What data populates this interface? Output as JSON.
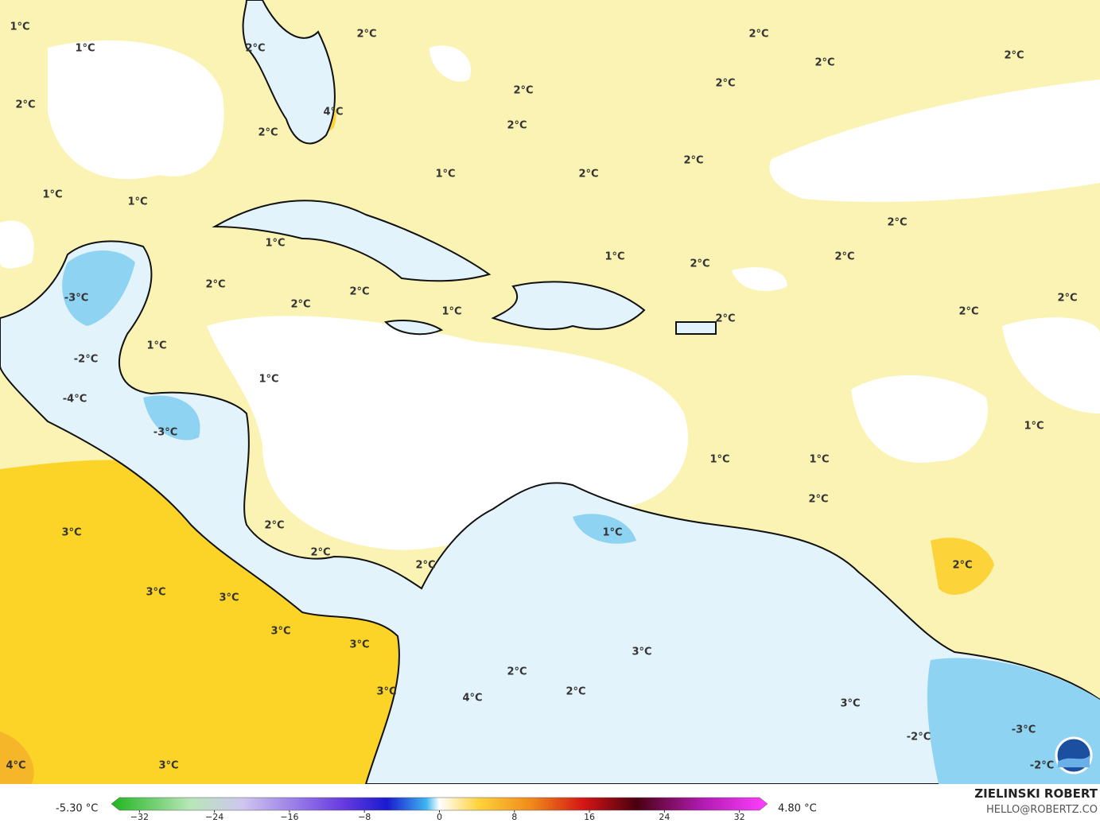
{
  "map": {
    "labels": [
      "1°C",
      "1°C",
      "2°C",
      "2°C",
      "2°C",
      "2°C",
      "2°C",
      "2°C",
      "4°C",
      "2°C",
      "2°C",
      "2°C",
      "2°C",
      "1°C",
      "2°C",
      "2°C",
      "1°C",
      "1°C",
      "2°C",
      "1°C",
      "1°C",
      "2°C",
      "2°C",
      "2°C",
      "2°C",
      "-3°C",
      "2°C",
      "1°C",
      "2°C",
      "2°C",
      "2°C",
      "1°C",
      "-2°C",
      "1°C",
      "-4°C",
      "-3°C",
      "1°C",
      "1°C",
      "1°C",
      "2°C",
      "2°C",
      "3°C",
      "1°C",
      "2°C",
      "2°C",
      "2°C",
      "3°C",
      "3°C",
      "3°C",
      "3°C",
      "3°C",
      "2°C",
      "3°C",
      "2°C",
      "4°C",
      "3°C",
      "-2°C",
      "-3°C",
      "4°C",
      "3°C",
      "-2°C"
    ],
    "colorbar": {
      "min_label": "-5.30 °C",
      "max_label": "4.80 °C",
      "xlim": [
        -35,
        35
      ],
      "xticks": [
        {
          "value": -32,
          "label": "−32"
        },
        {
          "value": -24,
          "label": "−24"
        },
        {
          "value": -16,
          "label": "−16"
        },
        {
          "value": -8,
          "label": "−8"
        },
        0,
        8,
        16,
        24,
        32
      ]
    },
    "credit": {
      "name": "ZIELINSKI ROBERT",
      "site": "HELLO@ROBERTZ.CO"
    }
  }
}
